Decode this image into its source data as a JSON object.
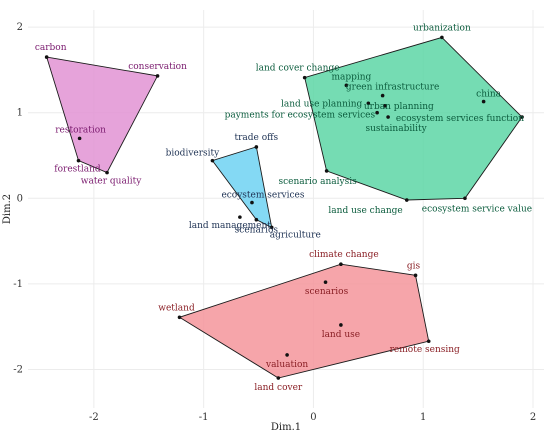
{
  "chart_data": {
    "type": "scatter",
    "title": "",
    "xlabel": "Dim.1",
    "ylabel": "Dim.2",
    "xlim": [
      -2.6,
      2.1
    ],
    "ylim": [
      -2.45,
      2.2
    ],
    "x_ticks": [
      "-2",
      "-1",
      "0",
      "1",
      "2"
    ],
    "x_tick_values": [
      -2,
      -1,
      0,
      1,
      2
    ],
    "y_ticks": [
      "-2",
      "-1",
      "0",
      "1",
      "2"
    ],
    "y_tick_values": [
      -2,
      -1,
      0,
      1,
      2
    ],
    "grid": true,
    "clusters": [
      {
        "fill": "#e293d3",
        "stroke": "#1b1b1b",
        "text_color": "#7a1a6e",
        "hull": [
          [
            -2.43,
            1.65
          ],
          [
            -1.42,
            1.43
          ],
          [
            -1.88,
            0.3
          ],
          [
            -2.14,
            0.44
          ]
        ],
        "points": [
          {
            "label": "carbon",
            "x": -2.43,
            "y": 1.65,
            "anchor": "middle",
            "dx": 4,
            "dy": -7
          },
          {
            "label": "conservation",
            "x": -1.42,
            "y": 1.43,
            "anchor": "middle",
            "dx": 0,
            "dy": -7
          },
          {
            "label": "restoration",
            "x": -2.13,
            "y": 0.7,
            "anchor": "middle",
            "dx": 1,
            "dy": -6
          },
          {
            "label": "forestland",
            "x": -2.14,
            "y": 0.44,
            "anchor": "middle",
            "dx": -1,
            "dy": 11
          },
          {
            "label": "water quality",
            "x": -1.88,
            "y": 0.3,
            "anchor": "middle",
            "dx": 4,
            "dy": 11
          }
        ]
      },
      {
        "fill": "#5dd6a6",
        "stroke": "#1b1b1b",
        "text_color": "#0b5c3d",
        "hull": [
          [
            1.17,
            1.88
          ],
          [
            1.9,
            0.95
          ],
          [
            1.38,
            0.0
          ],
          [
            0.85,
            -0.02
          ],
          [
            0.12,
            0.32
          ],
          [
            -0.08,
            1.41
          ]
        ],
        "points": [
          {
            "label": "urbanization",
            "x": 1.17,
            "y": 1.88,
            "anchor": "middle",
            "dx": 0,
            "dy": -7
          },
          {
            "label": "land cover change",
            "x": -0.08,
            "y": 1.41,
            "anchor": "middle",
            "dx": -7,
            "dy": -7
          },
          {
            "label": "mapping",
            "x": 0.3,
            "y": 1.32,
            "anchor": "middle",
            "dx": 5,
            "dy": -6
          },
          {
            "label": "green infrastructure",
            "x": 0.63,
            "y": 1.2,
            "anchor": "middle",
            "dx": 10,
            "dy": -6
          },
          {
            "label": "china",
            "x": 1.55,
            "y": 1.13,
            "anchor": "middle",
            "dx": 5,
            "dy": -5
          },
          {
            "label": "land use planning",
            "x": 0.5,
            "y": 1.11,
            "anchor": "end",
            "dx": -6,
            "dy": 3
          },
          {
            "label": "urban planning",
            "x": 0.65,
            "y": 1.08,
            "anchor": "middle",
            "dx": 14,
            "dy": 3
          },
          {
            "label": "payments for ecosystem services",
            "x": 0.58,
            "y": 1.0,
            "anchor": "end",
            "dx": -2,
            "dy": 5
          },
          {
            "label": "ecosystem services function",
            "x": 1.9,
            "y": 0.95,
            "anchor": "end",
            "dx": 2,
            "dy": 4
          },
          {
            "label": "sustainability",
            "x": 0.68,
            "y": 0.95,
            "anchor": "middle",
            "dx": 8,
            "dy": 14
          },
          {
            "label": "scenario analysis",
            "x": 0.12,
            "y": 0.32,
            "anchor": "middle",
            "dx": -9,
            "dy": 13
          },
          {
            "label": "land use change",
            "x": 0.85,
            "y": -0.02,
            "anchor": "end",
            "dx": -4,
            "dy": 13
          },
          {
            "label": "ecosystem service value",
            "x": 1.38,
            "y": 0.0,
            "anchor": "middle",
            "dx": 12,
            "dy": 13
          }
        ]
      },
      {
        "fill": "#6fd2f2",
        "stroke": "#1b1b1b",
        "text_color": "#1f3354",
        "hull": [
          [
            -0.52,
            0.6
          ],
          [
            -0.38,
            -0.34
          ],
          [
            -0.52,
            -0.25
          ],
          [
            -0.92,
            0.44
          ]
        ],
        "points": [
          {
            "label": "trade offs",
            "x": -0.52,
            "y": 0.6,
            "anchor": "middle",
            "dx": 0,
            "dy": -7
          },
          {
            "label": "biodiversity",
            "x": -0.92,
            "y": 0.44,
            "anchor": "middle",
            "dx": -20,
            "dy": -5
          },
          {
            "label": "ecoystem services",
            "x": -0.56,
            "y": -0.05,
            "anchor": "middle",
            "dx": 11,
            "dy": -5
          },
          {
            "label": "land management",
            "x": -0.67,
            "y": -0.22,
            "anchor": "middle",
            "dx": -10,
            "dy": 11
          },
          {
            "label": "agriculture",
            "x": -0.38,
            "y": -0.34,
            "anchor": "start",
            "dx": -2,
            "dy": 10
          },
          {
            "label": "scenarios",
            "x": -0.52,
            "y": -0.25,
            "anchor": "middle",
            "dx": 0,
            "dy": 13
          }
        ]
      },
      {
        "fill": "#f5959b",
        "stroke": "#1b1b1b",
        "text_color": "#8a1f25",
        "hull": [
          [
            0.25,
            -0.77
          ],
          [
            0.93,
            -0.9
          ],
          [
            1.05,
            -1.67
          ],
          [
            -0.32,
            -2.1
          ],
          [
            -1.22,
            -1.39
          ]
        ],
        "points": [
          {
            "label": "climate change",
            "x": 0.25,
            "y": -0.77,
            "anchor": "middle",
            "dx": 3,
            "dy": -7
          },
          {
            "label": "gis",
            "x": 0.93,
            "y": -0.9,
            "anchor": "middle",
            "dx": -2,
            "dy": -7
          },
          {
            "label": "scenarios",
            "x": 0.11,
            "y": -0.98,
            "anchor": "middle",
            "dx": 1,
            "dy": 12
          },
          {
            "label": "wetland",
            "x": -1.22,
            "y": -1.39,
            "anchor": "middle",
            "dx": -3,
            "dy": -7
          },
          {
            "label": "land use",
            "x": 0.25,
            "y": -1.48,
            "anchor": "middle",
            "dx": 0,
            "dy": 12
          },
          {
            "label": "remote sensing",
            "x": 1.05,
            "y": -1.67,
            "anchor": "middle",
            "dx": -4,
            "dy": 11
          },
          {
            "label": "valuation",
            "x": -0.24,
            "y": -1.83,
            "anchor": "middle",
            "dx": 0,
            "dy": 12
          },
          {
            "label": "land cover",
            "x": -0.32,
            "y": -2.1,
            "anchor": "middle",
            "dx": 0,
            "dy": 12
          }
        ]
      }
    ]
  }
}
